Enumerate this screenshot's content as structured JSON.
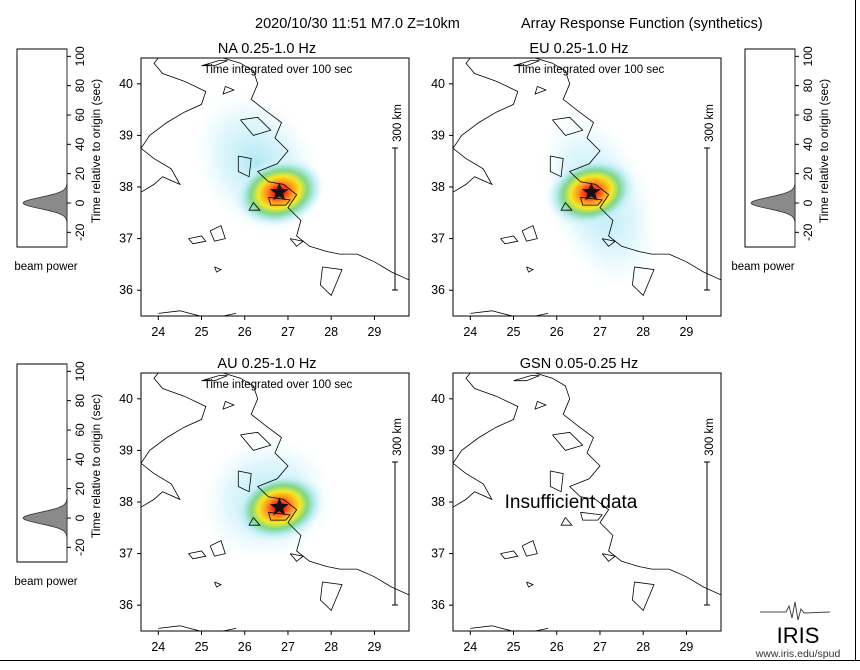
{
  "header": {
    "event": "2020/10/30 11:51  M7.0  Z=10km",
    "product": "Array Response Function (synthetics)"
  },
  "common": {
    "beam_power_label": "beam power",
    "time_axis_label": "Time relative to origin (sec)",
    "time_ticks": [
      "-20",
      "0",
      "20",
      "40",
      "60",
      "80",
      "100"
    ],
    "lon_ticks": [
      "24",
      "25",
      "26",
      "27",
      "28",
      "29"
    ],
    "lat_ticks": [
      "36",
      "37",
      "38",
      "39",
      "40"
    ],
    "integration_label": "Time integrated over 100 sec",
    "scale_label": "300 km"
  },
  "chart_data": [
    {
      "type": "heatmap",
      "title": "NA  0.25-1.0 Hz",
      "xlim": [
        23.6,
        29.8
      ],
      "ylim": [
        35.5,
        40.5
      ],
      "peak": {
        "lon": 26.8,
        "lat": 37.9
      },
      "beam_power_peak_time_sec": 0,
      "status": ""
    },
    {
      "type": "heatmap",
      "title": "EU  0.25-1.0 Hz",
      "xlim": [
        23.6,
        29.8
      ],
      "ylim": [
        35.5,
        40.5
      ],
      "peak": {
        "lon": 26.8,
        "lat": 37.9
      },
      "beam_power_peak_time_sec": 0,
      "status": ""
    },
    {
      "type": "heatmap",
      "title": "AU  0.25-1.0 Hz",
      "xlim": [
        23.6,
        29.8
      ],
      "ylim": [
        35.5,
        40.5
      ],
      "peak": {
        "lon": 26.8,
        "lat": 37.9
      },
      "beam_power_peak_time_sec": 0,
      "status": ""
    },
    {
      "type": "heatmap",
      "title": "GSN  0.05-0.25 Hz",
      "xlim": [
        23.6,
        29.8
      ],
      "ylim": [
        35.5,
        40.5
      ],
      "status": "Insufficient data"
    }
  ],
  "footer": {
    "logo_text": "IRIS",
    "url": "www.iris.edu/spud"
  },
  "colors": {
    "heat_core": "#e8141c",
    "heat_orange": "#ff8c1a",
    "heat_yellow": "#f3e81e",
    "heat_green": "#7fd68c",
    "heat_cyan": "#bfeef7",
    "beam_fill": "#888888",
    "frame": "#000000"
  }
}
